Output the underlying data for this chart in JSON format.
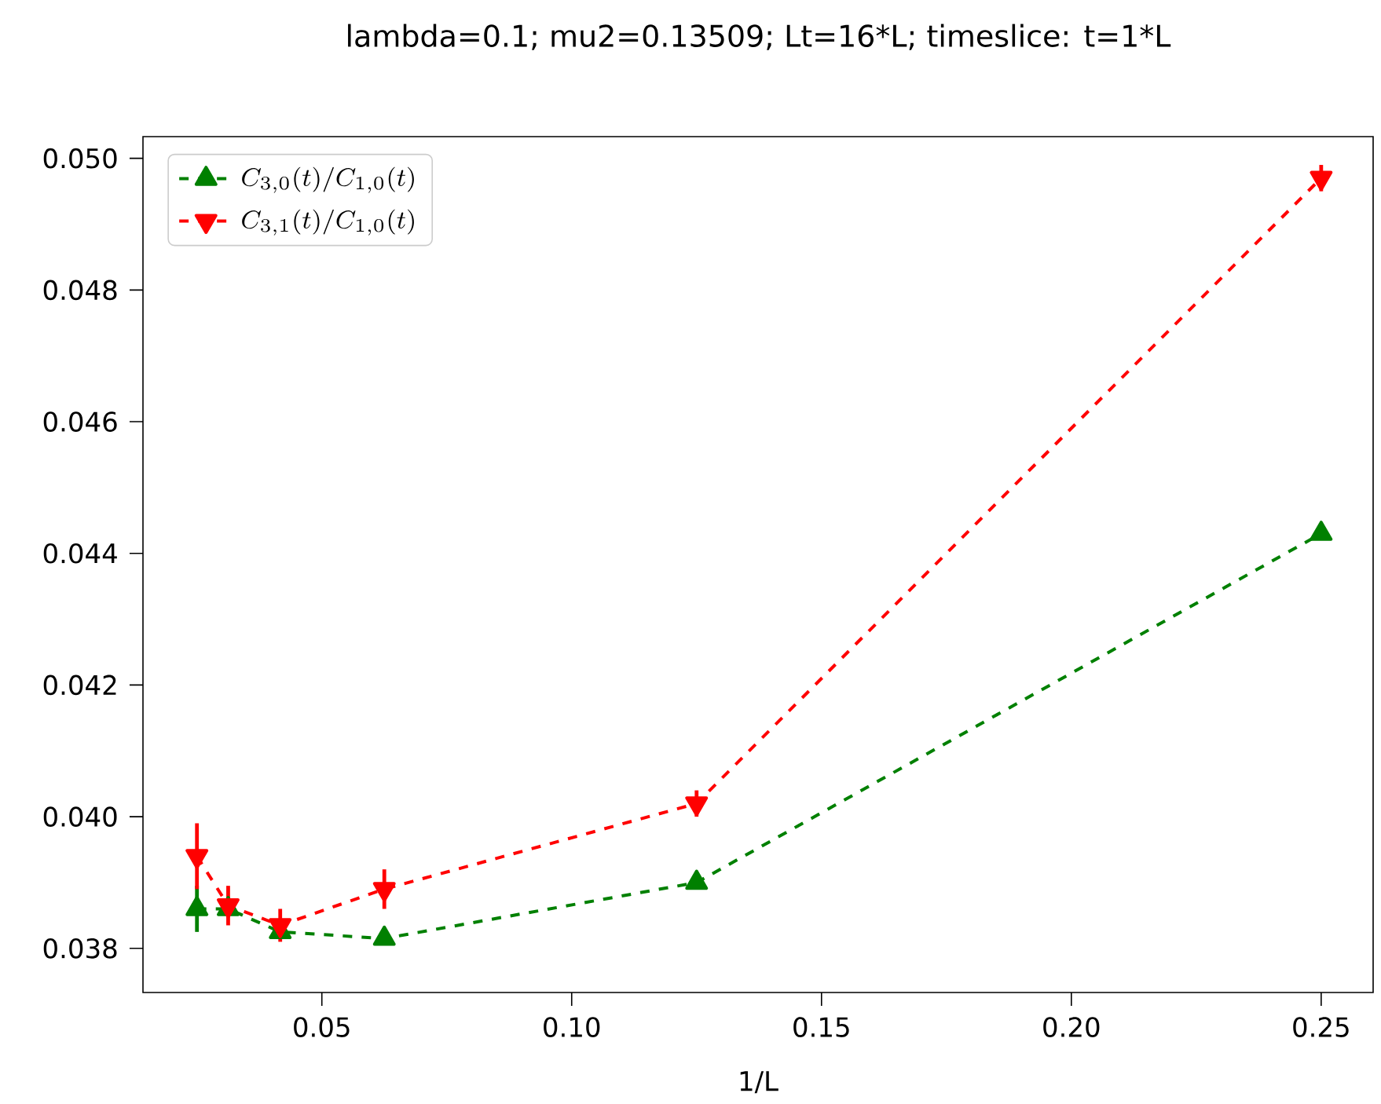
{
  "chart_data": {
    "type": "line",
    "title": "lambda=0.1; mu2=0.13509; Lt=16*L; timeslice: t=1*L",
    "xlabel": "1/L",
    "x": [
      0.025,
      0.03125,
      0.041667,
      0.0625,
      0.125,
      0.25
    ],
    "series": [
      {
        "name": "C_{3,0}(t)/C_{1,0}(t)",
        "color": "#008000",
        "marker": "triangle",
        "values": [
          0.0386,
          0.0386,
          0.03825,
          0.03815,
          0.039,
          0.0443
        ],
        "errors": [
          0.00035,
          0.0001,
          0.0001,
          0.0001,
          0.0001,
          0.0001
        ]
      },
      {
        "name": "C_{3,1}(t)/C_{1,0}(t)",
        "color": "#ff0000",
        "marker": "triangle_down",
        "values": [
          0.0394,
          0.03865,
          0.03835,
          0.0389,
          0.0402,
          0.0497
        ],
        "errors": [
          0.0005,
          0.0003,
          0.00025,
          0.0003,
          0.0002,
          0.0002
        ]
      }
    ],
    "xlim": [
      0.0142,
      0.2604
    ],
    "ylim": [
      0.03733,
      0.05033
    ],
    "xticks": [
      {
        "value": 0.05,
        "label": "0.05"
      },
      {
        "value": 0.1,
        "label": "0.10"
      },
      {
        "value": 0.15,
        "label": "0.15"
      },
      {
        "value": 0.2,
        "label": "0.20"
      },
      {
        "value": 0.25,
        "label": "0.25"
      }
    ],
    "yticks": [
      {
        "value": 0.038,
        "label": "0.038"
      },
      {
        "value": 0.04,
        "label": "0.040"
      },
      {
        "value": 0.042,
        "label": "0.042"
      },
      {
        "value": 0.044,
        "label": "0.044"
      },
      {
        "value": 0.046,
        "label": "0.046"
      },
      {
        "value": 0.048,
        "label": "0.048"
      },
      {
        "value": 0.05,
        "label": "0.050"
      }
    ],
    "grid": false,
    "legend": "top left",
    "line_style": "dashed"
  }
}
